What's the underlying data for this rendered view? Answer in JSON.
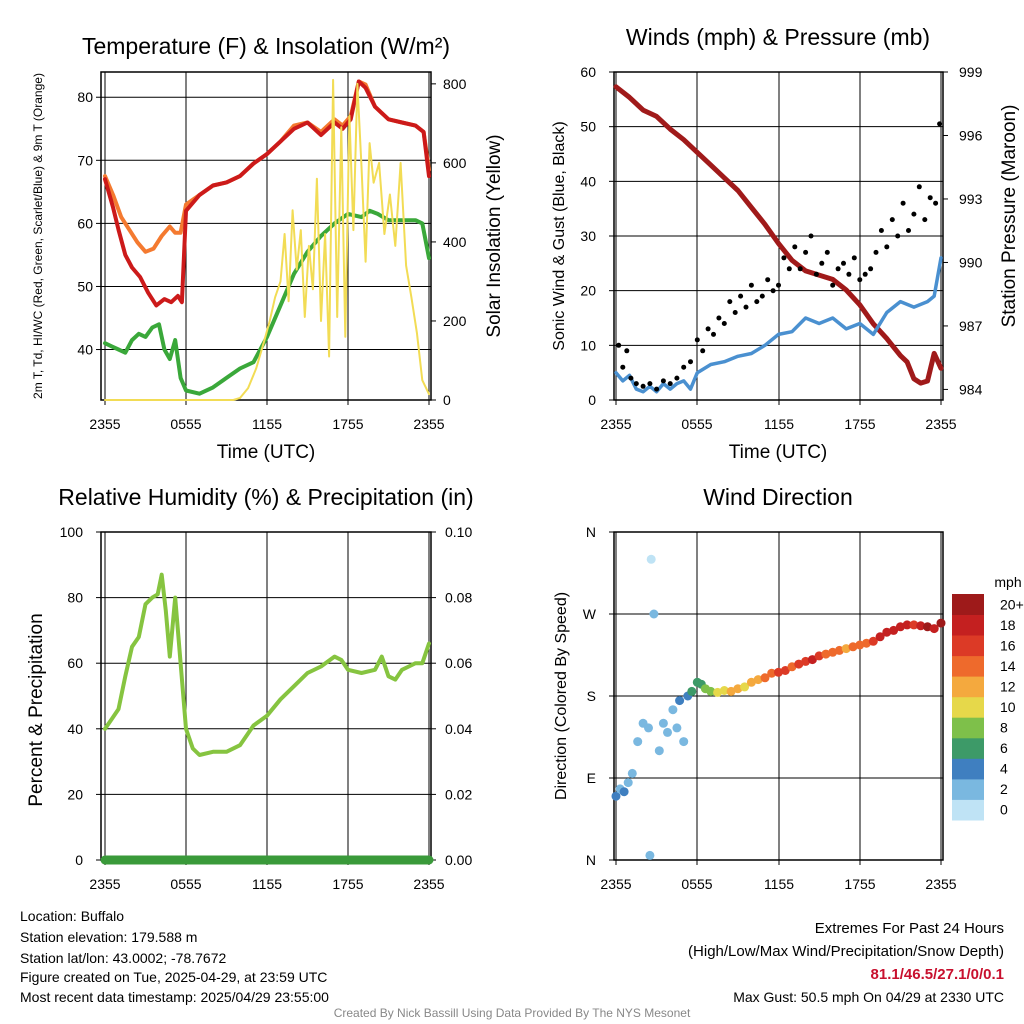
{
  "chart_data": [
    {
      "type": "line",
      "title": "Temperature (F) & Insolation (W/m²)",
      "xlabel": "Time (UTC)",
      "ylabel": "2m T, Td, HI/WC (Red, Green, Scarlet/Blue) & 9m T (Orange)",
      "y2label": "Solar Insolation (Yellow)",
      "x_ticks": [
        "2355",
        "0555",
        "1155",
        "1755",
        "2355"
      ],
      "xlim": [
        0,
        24
      ],
      "ylim": [
        32,
        84
      ],
      "y_ticks": [
        40,
        50,
        60,
        70,
        80
      ],
      "y2lim": [
        0,
        830
      ],
      "y2_ticks": [
        0,
        200,
        400,
        600,
        800
      ],
      "series": [
        {
          "name": "9m T",
          "color": "#f47a30",
          "axis": "left",
          "x": [
            0,
            0.6,
            1.2,
            1.8,
            2.4,
            3.0,
            3.6,
            4.2,
            4.8,
            5.2,
            5.6,
            6.0,
            7.0,
            8.0,
            9.0,
            10.0,
            11.0,
            12.0,
            13.0,
            14.0,
            15.0,
            16.0,
            17.0,
            17.6,
            18.2,
            18.8,
            19.3,
            20.0,
            21.0,
            22.0,
            23.0,
            23.6,
            24.0
          ],
          "y": [
            67.5,
            64.5,
            61,
            59,
            57,
            55.5,
            56,
            58,
            59.5,
            58.5,
            58.5,
            63,
            64.5,
            66,
            66.5,
            67.5,
            69.5,
            71,
            73,
            75.5,
            76,
            74.5,
            76.5,
            75.5,
            77,
            82.5,
            82,
            78.5,
            76.5,
            76,
            75.5,
            74.5,
            68.5
          ]
        },
        {
          "name": "2m T",
          "color": "#cc1a1a",
          "axis": "left",
          "x": [
            0,
            0.6,
            1.0,
            1.5,
            2.0,
            2.6,
            3.2,
            3.8,
            4.4,
            4.9,
            5.4,
            5.7,
            6.0,
            7.0,
            8.0,
            9.0,
            10.0,
            11.0,
            12.0,
            13.0,
            14.0,
            15.0,
            16.0,
            17.0,
            17.6,
            18.2,
            18.8,
            19.3,
            20.0,
            21.0,
            22.0,
            23.0,
            23.6,
            24.0
          ],
          "y": [
            67,
            62.5,
            59,
            55,
            53,
            51.5,
            49,
            47,
            48,
            47.5,
            48.5,
            47.5,
            62,
            64.5,
            66,
            66.5,
            67.5,
            69.5,
            71,
            73,
            75,
            76,
            74,
            76,
            75,
            76.5,
            82.5,
            81.5,
            78.5,
            76.5,
            76,
            75.5,
            74.5,
            67.5
          ]
        },
        {
          "name": "Td",
          "color": "#3aa83a",
          "axis": "left",
          "x": [
            0,
            0.5,
            1.0,
            1.5,
            2.0,
            2.5,
            3.0,
            3.5,
            4.0,
            4.4,
            4.8,
            5.2,
            5.6,
            6.0,
            7.0,
            8.0,
            9.0,
            10.0,
            11.0,
            12.0,
            13.0,
            14.0,
            15.0,
            16.0,
            17.0,
            18.0,
            19.0,
            19.6,
            20.2,
            21.0,
            22.0,
            23.0,
            23.5,
            24.0
          ],
          "y": [
            41,
            40.5,
            40,
            39.5,
            41.5,
            42.5,
            42,
            43.5,
            44,
            40,
            38.5,
            41.5,
            35.5,
            33.5,
            33,
            34,
            35.5,
            37,
            38,
            42,
            47,
            52,
            55.5,
            58,
            60,
            61.5,
            61,
            62,
            61.5,
            60.5,
            60.5,
            60.5,
            60,
            54.5
          ]
        },
        {
          "name": "Solar Insolation",
          "color": "#f2dc55",
          "axis": "right",
          "x": [
            0,
            6.0,
            8.0,
            9.5,
            10.0,
            10.6,
            11.2,
            11.8,
            12.2,
            12.6,
            13.0,
            13.3,
            13.6,
            13.9,
            14.2,
            14.5,
            14.8,
            15.1,
            15.4,
            15.7,
            16.0,
            16.3,
            16.6,
            16.9,
            17.2,
            17.5,
            17.8,
            18.1,
            18.4,
            18.7,
            19.0,
            19.3,
            19.6,
            19.9,
            20.3,
            20.7,
            21.1,
            21.5,
            21.9,
            22.3,
            22.7,
            23.1,
            23.5,
            24.0
          ],
          "y": [
            0,
            0,
            0,
            0,
            5,
            30,
            80,
            150,
            200,
            260,
            300,
            420,
            250,
            480,
            330,
            430,
            210,
            390,
            280,
            560,
            200,
            420,
            110,
            810,
            210,
            690,
            160,
            720,
            430,
            800,
            590,
            350,
            650,
            550,
            600,
            420,
            520,
            390,
            600,
            340,
            260,
            170,
            50,
            15
          ]
        }
      ]
    },
    {
      "type": "line",
      "title": "Winds (mph) & Pressure (mb)",
      "xlabel": "Time (UTC)",
      "ylabel": "Sonic Wind & Gust (Blue, Black)",
      "y2label": "Station Pressure (Maroon)",
      "x_ticks": [
        "2355",
        "0555",
        "1155",
        "1755",
        "2355"
      ],
      "xlim": [
        0,
        24
      ],
      "ylim": [
        0,
        60
      ],
      "y_ticks": [
        0,
        10,
        20,
        30,
        40,
        50,
        60
      ],
      "y2lim": [
        983.5,
        999
      ],
      "y2_ticks": [
        984,
        987,
        990,
        993,
        996,
        999
      ],
      "series": [
        {
          "name": "Station Pressure",
          "color": "#a01a1a",
          "axis": "right",
          "x": [
            0,
            1,
            2,
            3,
            4,
            5,
            6,
            7,
            8,
            9,
            10,
            11,
            12,
            13,
            14,
            15,
            16,
            17,
            18,
            19,
            20,
            21,
            21.5,
            22,
            22.5,
            23,
            23.5,
            24
          ],
          "y": [
            998.3,
            997.8,
            997.2,
            996.9,
            996.3,
            995.8,
            995.2,
            994.6,
            994.0,
            993.4,
            992.6,
            991.8,
            990.9,
            990.1,
            989.6,
            989.4,
            989.2,
            988.7,
            988.0,
            987.1,
            986.4,
            985.6,
            985.3,
            984.5,
            984.3,
            984.4,
            985.7,
            985.0
          ]
        },
        {
          "name": "Sonic Wind",
          "color": "#4a90d0",
          "axis": "left",
          "x": [
            0,
            0.5,
            1.0,
            1.5,
            2.0,
            2.5,
            3.0,
            3.5,
            4.0,
            4.5,
            5.0,
            5.5,
            6.0,
            7.0,
            8.0,
            9.0,
            10.0,
            11.0,
            12.0,
            13.0,
            14.0,
            15.0,
            16.0,
            17.0,
            18.0,
            19.0,
            20.0,
            21.0,
            22.0,
            23.0,
            23.5,
            24.0
          ],
          "y": [
            5,
            3.5,
            4.5,
            2,
            1.5,
            2.5,
            1.5,
            3,
            2,
            3,
            3.5,
            2,
            5,
            6.5,
            7,
            8,
            8.5,
            10,
            12,
            12.5,
            15,
            14,
            15,
            13,
            14,
            12,
            16,
            18,
            17,
            18,
            19,
            26
          ]
        },
        {
          "name": "Gust",
          "color": "#000000",
          "axis": "left",
          "style": "dots",
          "x": [
            0.2,
            0.5,
            0.8,
            1.1,
            1.5,
            2.0,
            2.5,
            3.0,
            3.5,
            4.0,
            4.5,
            5.0,
            5.5,
            6.0,
            6.4,
            6.8,
            7.2,
            7.6,
            8.0,
            8.4,
            8.8,
            9.2,
            9.6,
            10.0,
            10.4,
            10.8,
            11.2,
            11.6,
            12.0,
            12.4,
            12.8,
            13.2,
            13.6,
            14.0,
            14.4,
            14.8,
            15.2,
            15.6,
            16.0,
            16.4,
            16.8,
            17.2,
            17.6,
            18.0,
            18.4,
            18.8,
            19.2,
            19.6,
            20.0,
            20.4,
            20.8,
            21.2,
            21.6,
            22.0,
            22.4,
            22.8,
            23.2,
            23.6,
            23.9
          ],
          "y": [
            10,
            6,
            9,
            4,
            3,
            2.5,
            3,
            2,
            3.5,
            3,
            4,
            6,
            7,
            11,
            9,
            13,
            12,
            15,
            14,
            18,
            16,
            19,
            17,
            21,
            18,
            19,
            22,
            20,
            21,
            26,
            24,
            28,
            24,
            27,
            30,
            23,
            25,
            27,
            21,
            24,
            25,
            23,
            26,
            22,
            23,
            24,
            27,
            31,
            28,
            33,
            30,
            36,
            31,
            34,
            39,
            33,
            37,
            36,
            50.5
          ]
        }
      ]
    },
    {
      "type": "line",
      "title": "Relative Humidity (%) & Precipitation (in)",
      "xlabel": "",
      "ylabel": "Percent & Precipitation",
      "x_ticks": [
        "2355",
        "0555",
        "1155",
        "1755",
        "2355"
      ],
      "xlim": [
        0,
        24
      ],
      "ylim": [
        0,
        100
      ],
      "y_ticks": [
        0,
        20,
        40,
        60,
        80,
        100
      ],
      "y2lim": [
        0,
        0.1
      ],
      "y2_ticks": [
        "0.00",
        "0.02",
        "0.04",
        "0.06",
        "0.08",
        "0.10"
      ],
      "series": [
        {
          "name": "Relative Humidity",
          "color": "#86c440",
          "axis": "left",
          "x": [
            0,
            0.5,
            1.0,
            1.5,
            2.0,
            2.5,
            3.0,
            3.5,
            3.9,
            4.2,
            4.5,
            4.8,
            5.2,
            5.6,
            6.0,
            6.5,
            7.0,
            8.0,
            9.0,
            10.0,
            11.0,
            12.0,
            13.0,
            14.0,
            15.0,
            16.0,
            17.0,
            17.5,
            18.0,
            19.0,
            20.0,
            20.5,
            21.0,
            21.5,
            22.0,
            22.5,
            23.0,
            23.5,
            24.0
          ],
          "y": [
            40,
            43,
            46,
            56,
            65,
            68,
            78,
            80,
            81,
            87,
            76,
            62,
            80,
            60,
            40,
            34,
            32,
            33,
            33,
            35,
            41,
            44,
            49,
            53,
            57,
            59,
            62,
            61,
            58,
            57,
            58,
            62,
            56,
            55,
            58,
            59,
            60,
            60,
            66
          ]
        },
        {
          "name": "Precipitation",
          "color": "#3a9a3a",
          "axis": "right",
          "x": [
            0,
            24
          ],
          "y": [
            0,
            0
          ]
        }
      ]
    },
    {
      "type": "scatter",
      "title": "Wind Direction",
      "xlabel": "",
      "ylabel": "Direction (Colored By Speed)",
      "x_ticks": [
        "2355",
        "0555",
        "1155",
        "1755",
        "2355"
      ],
      "xlim": [
        0,
        24
      ],
      "ylim": [
        0,
        360
      ],
      "y_ticks": [
        "N",
        "E",
        "S",
        "W",
        "N"
      ],
      "colorbar": {
        "label": "mph",
        "ticks": [
          "0",
          "2",
          "4",
          "6",
          "8",
          "10",
          "12",
          "14",
          "16",
          "18",
          "20+"
        ],
        "colors": [
          "#bfe3f5",
          "#7ab8e0",
          "#3f7fc0",
          "#3d9a68",
          "#7ec04a",
          "#e6d84a",
          "#f4a93e",
          "#ee6a2c",
          "#dc3a26",
          "#c42020",
          "#9e1a1a"
        ]
      },
      "points": {
        "x": [
          0.0,
          0.3,
          0.6,
          0.9,
          1.2,
          1.6,
          2.0,
          2.4,
          2.5,
          2.6,
          2.8,
          3.2,
          3.5,
          3.8,
          4.2,
          4.5,
          4.7,
          5.0,
          5.3,
          5.6,
          6.0,
          6.3,
          6.6,
          7.0,
          7.5,
          8.0,
          8.5,
          9.0,
          9.5,
          10.0,
          10.5,
          11.0,
          11.5,
          12.0,
          12.5,
          13.0,
          13.5,
          14.0,
          14.5,
          15.0,
          15.5,
          16.0,
          16.5,
          17.0,
          17.5,
          18.0,
          18.5,
          19.0,
          19.5,
          20.0,
          20.5,
          21.0,
          21.5,
          22.0,
          22.5,
          23.0,
          23.5,
          24.0
        ],
        "y": [
          70,
          78,
          75,
          85,
          95,
          130,
          150,
          145,
          5,
          330,
          270,
          120,
          150,
          140,
          165,
          145,
          175,
          130,
          180,
          185,
          195,
          193,
          188,
          185,
          184,
          186,
          185,
          188,
          190,
          195,
          198,
          200,
          205,
          206,
          208,
          212,
          215,
          218,
          220,
          224,
          226,
          228,
          230,
          232,
          234,
          236,
          238,
          240,
          245,
          250,
          252,
          256,
          258,
          258,
          257,
          256,
          254,
          260
        ],
        "speed": [
          4,
          3,
          5,
          2,
          3,
          2,
          2,
          2,
          2,
          1,
          2,
          3,
          2,
          2,
          3,
          2,
          4,
          2,
          5,
          6,
          6,
          7,
          8,
          8,
          10,
          11,
          12,
          12,
          11,
          13,
          13,
          14,
          15,
          16,
          16,
          15,
          17,
          17,
          18,
          16,
          14,
          15,
          14,
          13,
          14,
          15,
          15,
          16,
          18,
          18,
          19,
          18,
          19,
          17,
          18,
          20,
          18,
          20
        ]
      }
    }
  ],
  "left_info": [
    "Location: Buffalo",
    "Station elevation: 179.588 m",
    "Station lat/lon: 43.0002; -78.7672",
    "Figure created on Tue, 2025-04-29, at 23:59 UTC",
    "Most recent data timestamp: 2025/04/29 23:55:00"
  ],
  "extremes": {
    "title": "Extremes For Past 24 Hours",
    "subtitle": "(High/Low/Max Wind/Precipitation/Snow Depth)",
    "values": "81.1/46.5/27.1/0/0.1",
    "max_gust": "Max Gust: 50.5 mph On 04/29 at 2330 UTC"
  },
  "credit": "Created By Nick Bassill Using Data Provided By The NYS Mesonet"
}
